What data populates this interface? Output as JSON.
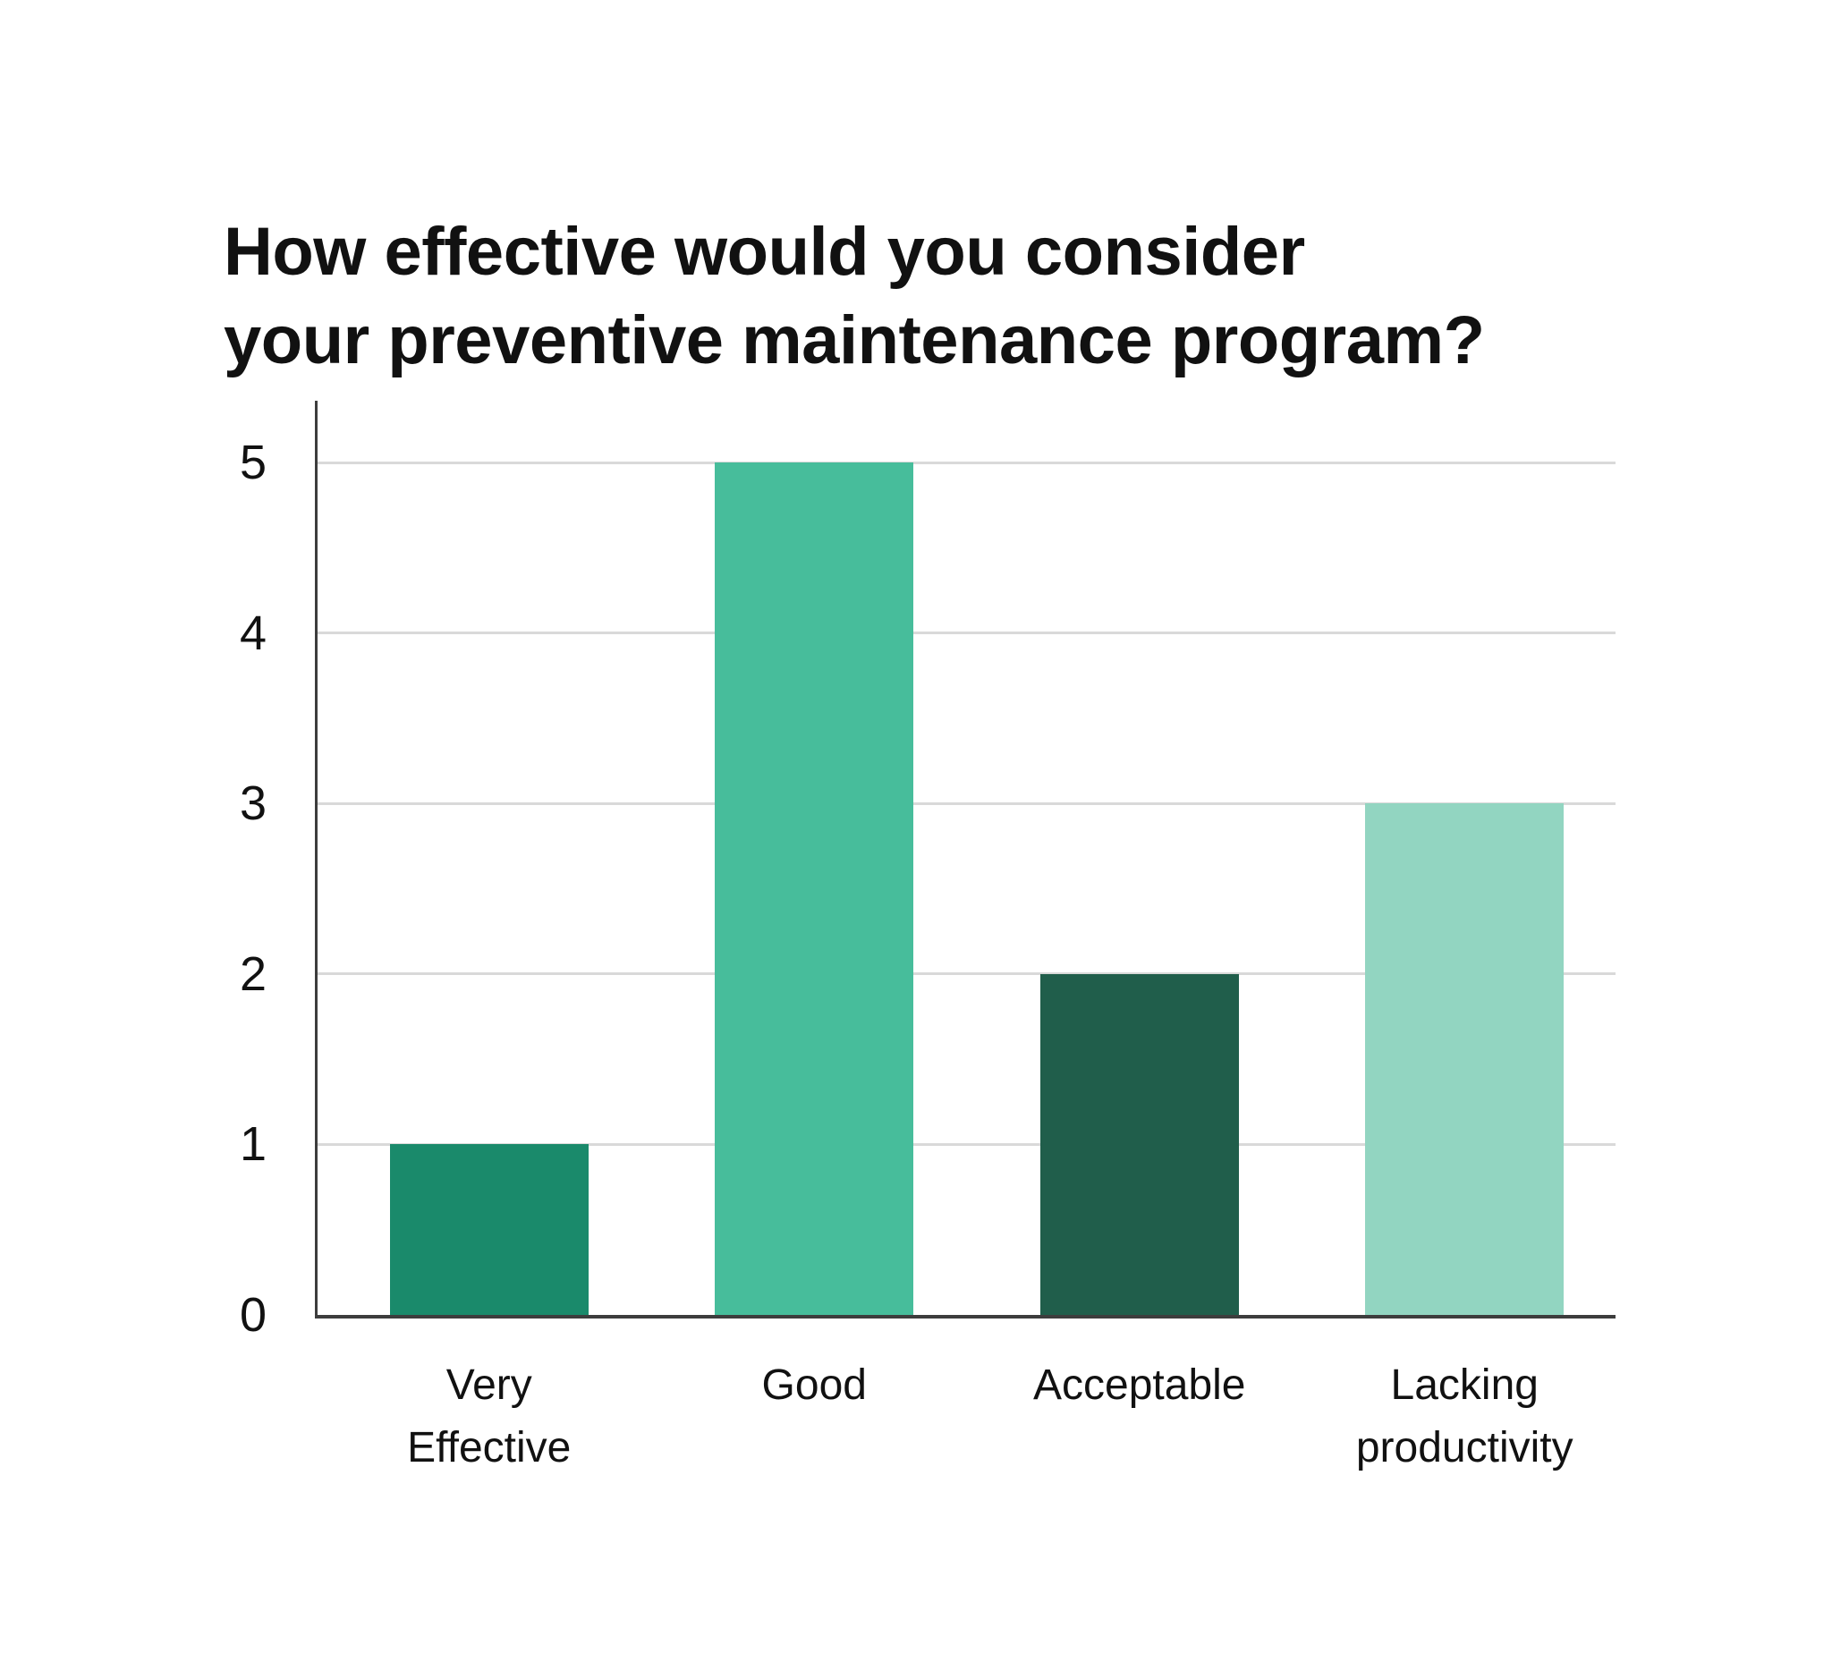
{
  "page": {
    "background": "#ffffff"
  },
  "title": {
    "lines": [
      "How effective would you consider",
      "your preventive maintenance program?"
    ]
  },
  "chart_data": {
    "type": "bar",
    "title": "How effective would you consider your preventive maintenance program?",
    "categories": [
      "Very Effective",
      "Good",
      "Acceptable",
      "Lacking productivity"
    ],
    "category_label_lines": [
      [
        "Very",
        "Effective"
      ],
      [
        "Good"
      ],
      [
        "Acceptable"
      ],
      [
        "Lacking",
        "productivity"
      ]
    ],
    "values": [
      1,
      5,
      2,
      3
    ],
    "bar_colors": [
      "#1a8a6b",
      "#47bd9b",
      "#205e4b",
      "#92d5c1"
    ],
    "yticks": [
      0,
      1,
      2,
      3,
      4,
      5
    ],
    "ylim": [
      0,
      5
    ],
    "xlabel": "",
    "ylabel": "",
    "grid": "horizontal-gridlines",
    "legend_position": "none",
    "axis_color": "#3d3d3d",
    "gridline_color": "#d9d9d9",
    "text_color": "#111111"
  }
}
